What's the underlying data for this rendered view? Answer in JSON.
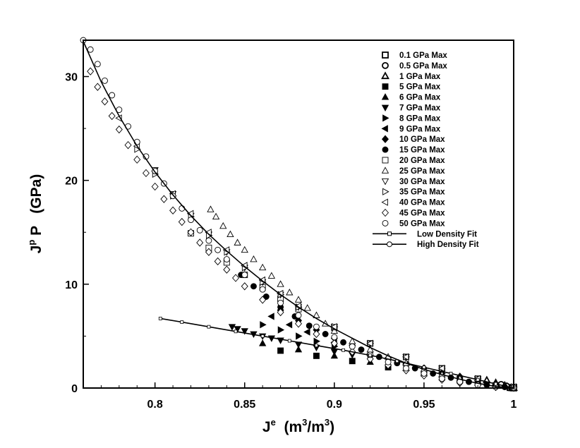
{
  "chart_data": {
    "type": "scatter",
    "title": "",
    "xlabel": {
      "base": "J",
      "sup": "e",
      "unit": "(m",
      "unit_sup": "3",
      "unit_mid": "/m",
      "unit_sup2": "3",
      "unit_end": ")"
    },
    "ylabel": {
      "base": "J",
      "sup": "p",
      "rest": " P   (GPa)"
    },
    "xlim": [
      0.76,
      1.0
    ],
    "ylim": [
      0,
      33.5
    ],
    "x_ticks": [
      {
        "value": 0.8,
        "label": "0.8"
      },
      {
        "value": 0.85,
        "label": "0.85"
      },
      {
        "value": 0.9,
        "label": "0.9"
      },
      {
        "value": 0.95,
        "label": "0.95"
      },
      {
        "value": 1.0,
        "label": "1"
      }
    ],
    "y_ticks": [
      {
        "value": 0,
        "label": "0"
      },
      {
        "value": 10,
        "label": "10"
      },
      {
        "value": 20,
        "label": "20"
      },
      {
        "value": 30,
        "label": "30"
      }
    ],
    "grid": false,
    "legend_position": "top-right",
    "series": [
      {
        "name": "0.1 GPa Max",
        "marker": "square",
        "filled": false,
        "bold": true,
        "x": [
          0.998,
          0.999,
          1.0
        ],
        "y": [
          0.05,
          0.03,
          0.01
        ]
      },
      {
        "name": "0.5 GPa Max",
        "marker": "circle",
        "filled": false,
        "bold": true,
        "x": [
          0.993,
          0.996,
          0.999
        ],
        "y": [
          0.35,
          0.2,
          0.05
        ]
      },
      {
        "name": "1 GPa Max",
        "marker": "triangle-up",
        "filled": false,
        "bold": true,
        "x": [
          0.985,
          0.99,
          0.995,
          1.0
        ],
        "y": [
          0.75,
          0.5,
          0.25,
          0.02
        ]
      },
      {
        "name": "5 GPa Max",
        "marker": "square",
        "filled": true,
        "bold": false,
        "x": [
          0.87,
          0.89,
          0.91,
          0.93,
          0.95,
          0.97,
          0.99
        ],
        "y": [
          3.6,
          3.1,
          2.6,
          2.0,
          1.4,
          0.8,
          0.25
        ]
      },
      {
        "name": "6 GPa Max",
        "marker": "triangle-up",
        "filled": true,
        "bold": false,
        "x": [
          0.86,
          0.88,
          0.9,
          0.92,
          0.94,
          0.96,
          0.98,
          1.0
        ],
        "y": [
          4.3,
          3.7,
          3.1,
          2.5,
          1.9,
          1.3,
          0.7,
          0.1
        ]
      },
      {
        "name": "7 GPa Max",
        "marker": "triangle-down",
        "filled": true,
        "bold": false,
        "x": [
          0.843,
          0.846,
          0.85,
          0.855,
          0.86,
          0.865,
          0.87,
          0.88,
          0.89,
          0.9,
          0.91,
          0.92,
          0.94,
          0.96,
          0.98,
          1.0
        ],
        "y": [
          5.9,
          5.7,
          5.5,
          5.2,
          5.0,
          4.8,
          4.6,
          4.2,
          3.9,
          3.5,
          3.2,
          2.9,
          2.2,
          1.5,
          0.8,
          0.1
        ]
      },
      {
        "name": "8 GPa Max",
        "marker": "triangle-right",
        "filled": true,
        "bold": false,
        "x": [
          0.86,
          0.87,
          0.88,
          0.89,
          0.9,
          0.92,
          0.94,
          0.96,
          0.98,
          1.0
        ],
        "y": [
          6.1,
          5.6,
          5.0,
          4.5,
          4.0,
          3.1,
          2.2,
          1.4,
          0.7,
          0.1
        ]
      },
      {
        "name": "9 GPa Max",
        "marker": "triangle-left",
        "filled": true,
        "bold": false,
        "x": [
          0.865,
          0.875,
          0.885,
          0.9,
          0.92,
          0.94,
          0.96,
          0.98,
          1.0
        ],
        "y": [
          6.9,
          6.1,
          5.4,
          4.4,
          3.3,
          2.3,
          1.5,
          0.7,
          0.1
        ]
      },
      {
        "name": "10 GPa Max",
        "marker": "diamond",
        "filled": true,
        "bold": false,
        "x": [
          0.87,
          0.88,
          0.89,
          0.9,
          0.91,
          0.93,
          0.95,
          0.97,
          0.99
        ],
        "y": [
          7.5,
          6.5,
          5.6,
          4.8,
          4.1,
          2.9,
          1.9,
          1.1,
          0.4
        ]
      },
      {
        "name": "15 GPa Max",
        "marker": "circle",
        "filled": true,
        "bold": false,
        "x": [
          0.848,
          0.855,
          0.862,
          0.87,
          0.878,
          0.886,
          0.895,
          0.905,
          0.915,
          0.925,
          0.935,
          0.945,
          0.955,
          0.965,
          0.975,
          0.985,
          0.995
        ],
        "y": [
          10.9,
          9.8,
          8.8,
          7.8,
          6.9,
          6.0,
          5.2,
          4.4,
          3.7,
          3.0,
          2.4,
          1.9,
          1.4,
          1.0,
          0.6,
          0.3,
          0.1
        ]
      },
      {
        "name": "20 GPa Max",
        "marker": "square",
        "filled": false,
        "bold": false,
        "x": [
          0.82,
          0.83,
          0.84,
          0.85,
          0.86,
          0.87,
          0.88,
          0.9,
          0.92,
          0.94,
          0.96,
          0.98,
          1.0
        ],
        "y": [
          14.9,
          13.5,
          12.1,
          10.9,
          9.7,
          8.6,
          7.6,
          5.8,
          4.3,
          3.0,
          1.9,
          0.9,
          0.1
        ]
      },
      {
        "name": "25 GPa Max",
        "marker": "triangle-up",
        "filled": false,
        "bold": false,
        "x": [
          0.831,
          0.834,
          0.838,
          0.842,
          0.846,
          0.85,
          0.855,
          0.86,
          0.865,
          0.87,
          0.875,
          0.88,
          0.885,
          0.89,
          0.895,
          0.9,
          0.91,
          0.92,
          0.93,
          0.94,
          0.95,
          0.96,
          0.97,
          0.98,
          0.99,
          1.0
        ],
        "y": [
          17.2,
          16.5,
          15.6,
          14.8,
          14.0,
          13.3,
          12.4,
          11.6,
          10.8,
          10.0,
          9.2,
          8.5,
          7.7,
          7.0,
          6.2,
          5.5,
          4.5,
          3.7,
          3.0,
          2.4,
          1.8,
          1.3,
          0.9,
          0.5,
          0.2,
          0.05
        ]
      },
      {
        "name": "30 GPa Max",
        "marker": "triangle-down",
        "filled": false,
        "bold": false,
        "x": [
          0.8,
          0.81,
          0.82,
          0.83,
          0.84,
          0.85,
          0.86,
          0.87,
          0.88,
          0.9,
          0.92,
          0.94,
          0.96,
          0.98,
          1.0
        ],
        "y": [
          21.0,
          18.7,
          16.6,
          14.8,
          13.1,
          11.6,
          10.2,
          9.0,
          7.8,
          5.9,
          4.3,
          3.0,
          1.9,
          0.9,
          0.1
        ]
      },
      {
        "name": "35 GPa Max",
        "marker": "triangle-right",
        "filled": false,
        "bold": false,
        "x": [
          0.79,
          0.8,
          0.81,
          0.82,
          0.83,
          0.84,
          0.85,
          0.86,
          0.87,
          0.88,
          0.9,
          0.92,
          0.94,
          0.96,
          0.98,
          1.0
        ],
        "y": [
          23.0,
          20.6,
          18.5,
          16.5,
          14.7,
          13.1,
          11.6,
          10.2,
          9.0,
          7.8,
          5.9,
          4.3,
          3.0,
          1.9,
          0.9,
          0.1
        ]
      },
      {
        "name": "40 GPa Max",
        "marker": "triangle-left",
        "filled": false,
        "bold": false,
        "x": [
          0.78,
          0.79,
          0.8,
          0.81,
          0.82,
          0.83,
          0.84,
          0.85,
          0.86,
          0.87,
          0.88,
          0.9,
          0.92,
          0.94,
          0.96,
          0.98,
          1.0
        ],
        "y": [
          26.0,
          23.3,
          20.9,
          18.7,
          16.8,
          15.0,
          13.3,
          11.8,
          10.4,
          9.1,
          7.9,
          5.9,
          4.3,
          3.0,
          1.9,
          0.9,
          0.1
        ]
      },
      {
        "name": "45 GPa Max",
        "marker": "diamond",
        "filled": false,
        "bold": false,
        "x": [
          0.764,
          0.768,
          0.772,
          0.776,
          0.78,
          0.785,
          0.79,
          0.795,
          0.8,
          0.805,
          0.81,
          0.815,
          0.82,
          0.825,
          0.83,
          0.835,
          0.84,
          0.845,
          0.85,
          0.86,
          0.87,
          0.88,
          0.89,
          0.9,
          0.91,
          0.92,
          0.93,
          0.94,
          0.95,
          0.96,
          0.97,
          0.98,
          0.99,
          1.0
        ],
        "y": [
          30.5,
          29.0,
          27.6,
          26.2,
          24.9,
          23.4,
          22.0,
          20.7,
          19.4,
          18.2,
          17.1,
          16.0,
          15.0,
          14.0,
          13.1,
          12.2,
          11.4,
          10.6,
          9.8,
          8.5,
          7.3,
          6.2,
          5.2,
          4.3,
          3.5,
          2.8,
          2.2,
          1.7,
          1.2,
          0.8,
          0.5,
          0.3,
          0.1,
          0.02
        ]
      },
      {
        "name": "50 GPa Max",
        "marker": "circle",
        "filled": false,
        "bold": false,
        "x": [
          0.76,
          0.764,
          0.768,
          0.772,
          0.776,
          0.78,
          0.785,
          0.79,
          0.795,
          0.8,
          0.805,
          0.81,
          0.815,
          0.82,
          0.825,
          0.83,
          0.835,
          0.84,
          0.85,
          0.86,
          0.87,
          0.88,
          0.89,
          0.9,
          0.91,
          0.92,
          0.93,
          0.94,
          0.95,
          0.96,
          0.97,
          0.98,
          0.99,
          1.0
        ],
        "y": [
          33.5,
          32.6,
          31.2,
          29.6,
          28.2,
          26.8,
          25.2,
          23.7,
          22.3,
          20.9,
          19.7,
          18.5,
          17.3,
          16.2,
          15.2,
          14.2,
          13.3,
          12.4,
          10.9,
          9.5,
          8.2,
          7.0,
          5.9,
          4.9,
          4.0,
          3.2,
          2.5,
          1.9,
          1.4,
          0.9,
          0.6,
          0.3,
          0.1,
          0.02
        ]
      }
    ],
    "fits": [
      {
        "name": "Low Density Fit",
        "marker": "square",
        "x": [
          0.803,
          0.815,
          0.83,
          0.845,
          0.86,
          0.875,
          0.89,
          0.905,
          0.92,
          0.935,
          0.95,
          0.965,
          0.98,
          0.99,
          1.0
        ],
        "y": [
          6.7,
          6.35,
          5.9,
          5.45,
          5.0,
          4.55,
          4.1,
          3.65,
          3.15,
          2.6,
          2.0,
          1.4,
          0.8,
          0.4,
          0.0
        ]
      },
      {
        "name": "High Density Fit",
        "marker": "circle",
        "x": [
          0.76,
          0.77,
          0.78,
          0.79,
          0.8,
          0.81,
          0.82,
          0.83,
          0.84,
          0.85,
          0.86,
          0.87,
          0.88,
          0.89,
          0.9,
          0.91,
          0.92,
          0.93,
          0.94,
          0.95,
          0.96,
          0.97,
          0.98,
          0.99,
          1.0
        ],
        "y": [
          33.4,
          29.5,
          26.2,
          23.3,
          20.8,
          18.6,
          16.6,
          14.8,
          13.2,
          11.7,
          10.3,
          9.0,
          7.8,
          6.7,
          5.7,
          4.8,
          3.9,
          3.1,
          2.4,
          1.8,
          1.3,
          0.85,
          0.45,
          0.15,
          0.0
        ]
      }
    ]
  }
}
